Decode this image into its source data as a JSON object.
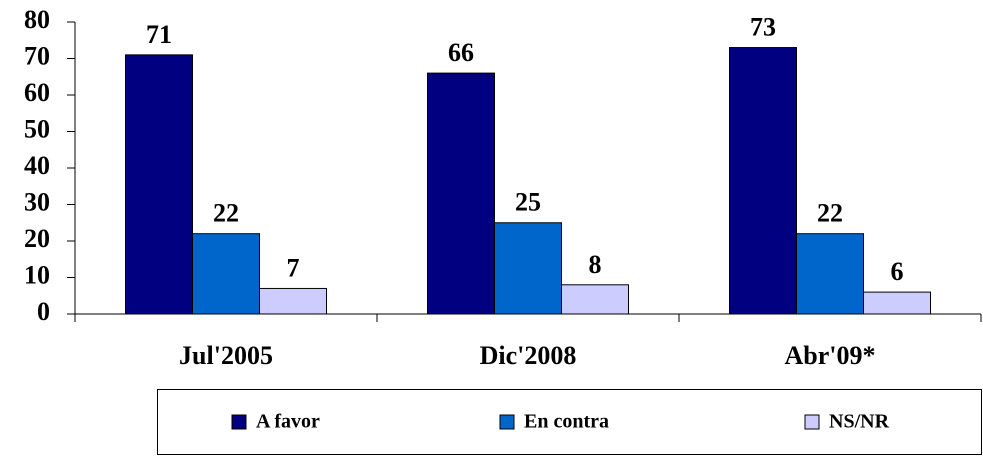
{
  "chart_data": {
    "type": "bar",
    "categories": [
      "Jul'2005",
      "Dic'2008",
      "Abr'09*"
    ],
    "series": [
      {
        "name": "A favor",
        "color": "#000080",
        "values": [
          71,
          66,
          73
        ]
      },
      {
        "name": "En contra",
        "color": "#0066CC",
        "values": [
          22,
          25,
          22
        ]
      },
      {
        "name": "NS/NR",
        "color": "#CCCCFF",
        "values": [
          7,
          8,
          6
        ]
      }
    ],
    "ylim": [
      0,
      80
    ],
    "yticks": [
      0,
      10,
      20,
      30,
      40,
      50,
      60,
      70,
      80
    ],
    "legend": "bottom"
  }
}
